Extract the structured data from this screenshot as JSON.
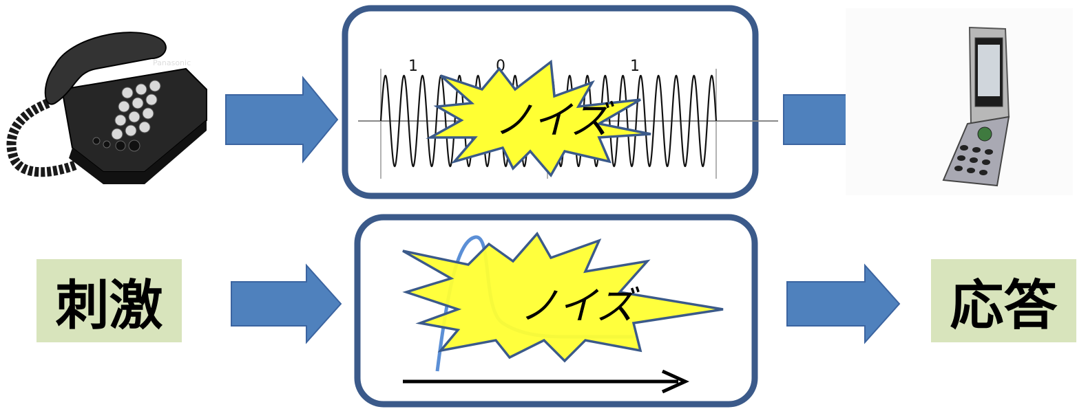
{
  "top_row": {
    "bit_labels": [
      "1",
      "0",
      "1"
    ],
    "noise_label": "ノイズ",
    "phone_brand": "Panasonic"
  },
  "bottom_row": {
    "stimulus_label": "刺激",
    "noise_label": "ノイズ",
    "response_label": "応答"
  },
  "colors": {
    "frame": "#3b5a8a",
    "arrow": "#4f81bd",
    "burst_fill": "#ffff33",
    "label_bg": "#d8e4bc",
    "curve": "#5b8fd6"
  },
  "icons": {
    "landline": "desk-telephone-icon",
    "mobile": "flip-phone-icon"
  }
}
